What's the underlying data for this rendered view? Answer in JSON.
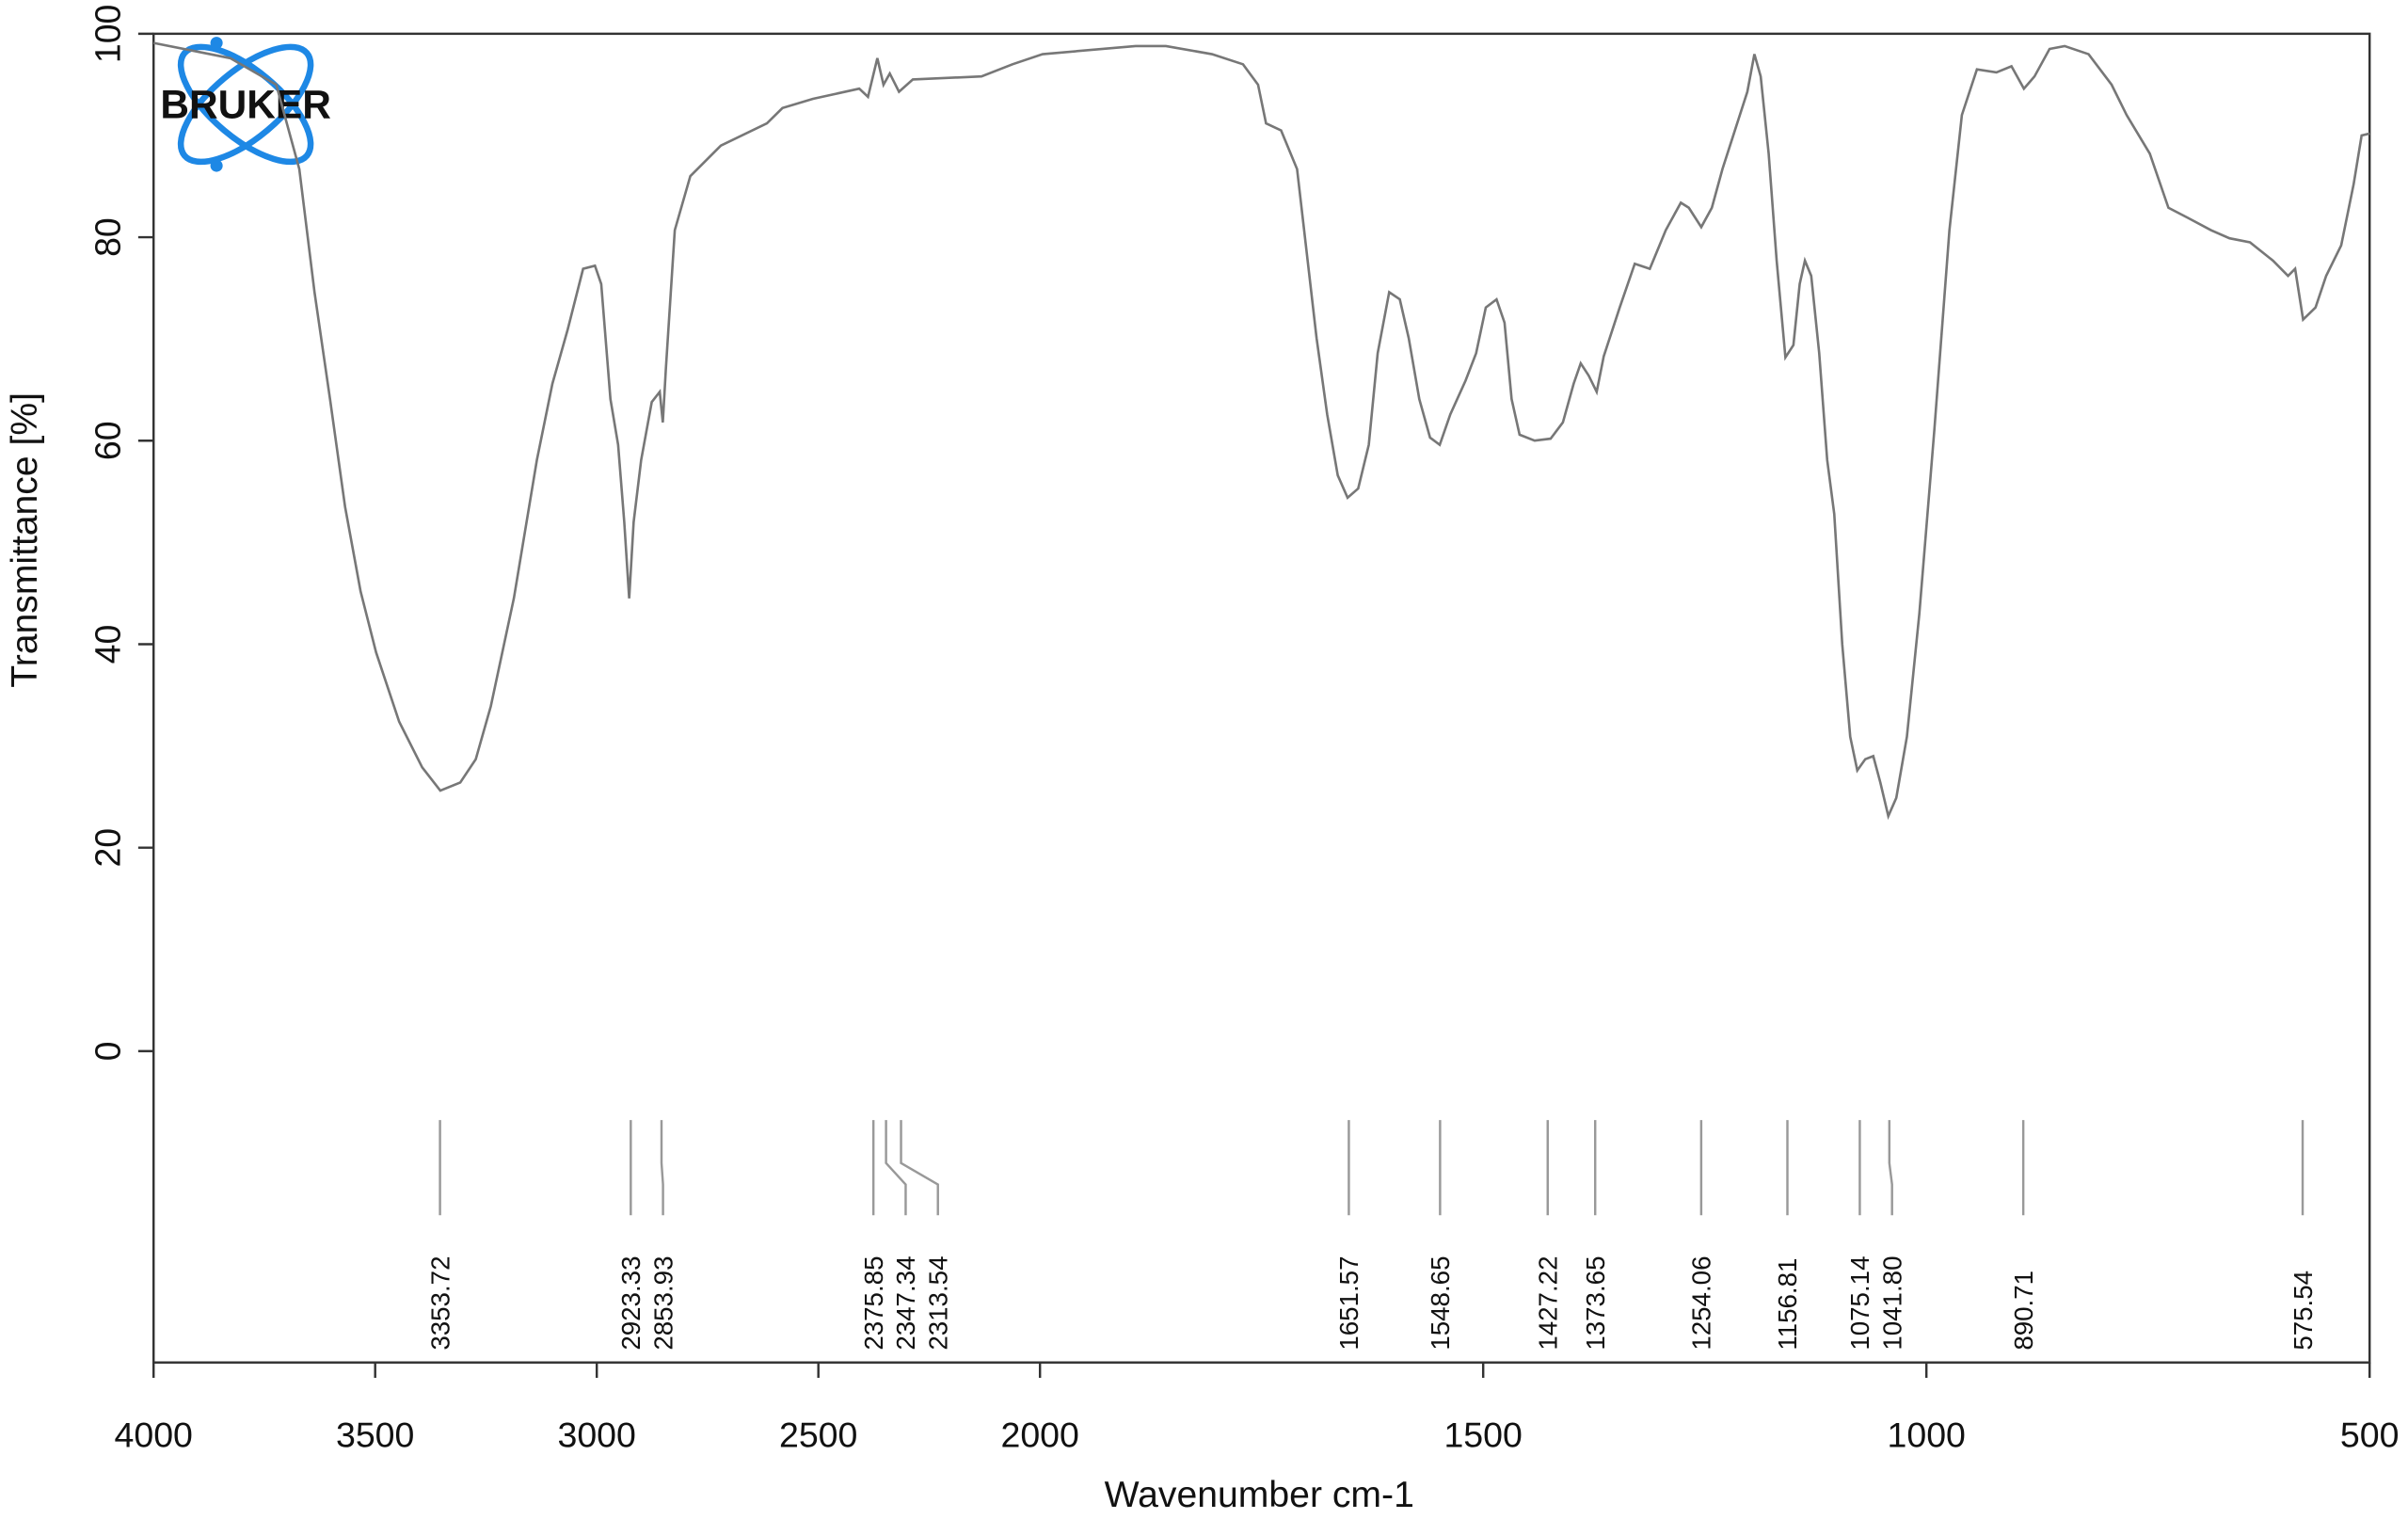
{
  "chart_data": {
    "type": "line",
    "logo": "BRUKER",
    "xlabel": "Wavenumber cm-1",
    "ylabel": "Transmittance [%]",
    "xlim": [
      4000,
      500
    ],
    "x_break": 2000,
    "x_break_zoom": 2,
    "xticks": [
      4000,
      3500,
      3000,
      2500,
      2000,
      1500,
      1000,
      500
    ],
    "ylim": [
      -30.6,
      100
    ],
    "yticks": [
      0,
      20,
      40,
      60,
      80,
      100
    ],
    "color": "#777777",
    "x": [
      4000,
      3827,
      3723,
      3671,
      3637,
      3602,
      3568,
      3533,
      3498,
      3446,
      3394,
      3353,
      3308,
      3273,
      3239,
      3187,
      3135,
      3100,
      3066,
      3031,
      3004,
      2990,
      2969,
      2952,
      2938,
      2927,
      2917,
      2900,
      2876,
      2858,
      2851,
      2844,
      2824,
      2789,
      2720,
      2616,
      2581,
      2512,
      2408,
      2388,
      2367,
      2353,
      2339,
      2318,
      2287,
      2132,
      2062,
      1997,
      1892,
      1858,
      1806,
      1771,
      1754,
      1745,
      1728,
      1710,
      1702,
      1688,
      1676,
      1664,
      1653,
      1641,
      1629,
      1619,
      1606,
      1594,
      1584,
      1572,
      1560,
      1549,
      1537,
      1520,
      1508,
      1497,
      1485,
      1476,
      1468,
      1459,
      1442,
      1424,
      1410,
      1398,
      1390,
      1381,
      1372,
      1364,
      1346,
      1329,
      1312,
      1294,
      1277,
      1268,
      1254,
      1242,
      1230,
      1216,
      1202,
      1194,
      1187,
      1178,
      1169,
      1159,
      1150,
      1143,
      1137,
      1130,
      1121,
      1112,
      1104,
      1095,
      1086,
      1078,
      1069,
      1060,
      1052,
      1043,
      1034,
      1022,
      1008,
      991,
      974,
      960,
      943,
      921,
      904,
      890,
      878,
      861,
      844,
      817,
      791,
      774,
      748,
      727,
      705,
      679,
      658,
      635,
      609,
      592,
      584,
      575,
      561,
      549,
      532,
      518,
      509,
      500
    ],
    "values": [
      99.1,
      97.6,
      95.0,
      86.7,
      74.6,
      64.1,
      53.5,
      45.2,
      39.2,
      32.4,
      27.9,
      25.6,
      26.4,
      28.7,
      33.9,
      44.5,
      58.1,
      65.6,
      70.9,
      76.9,
      77.2,
      75.4,
      64.1,
      59.6,
      52.0,
      44.5,
      52.0,
      58.1,
      63.8,
      64.8,
      61.8,
      67.1,
      80.7,
      86.0,
      89.0,
      91.2,
      92.7,
      93.6,
      94.6,
      93.8,
      97.6,
      95.0,
      96.1,
      94.3,
      95.5,
      95.8,
      97.0,
      98.0,
      98.8,
      98.8,
      98.0,
      97.0,
      95.0,
      91.2,
      90.5,
      86.7,
      80.7,
      70.1,
      62.6,
      56.6,
      54.4,
      55.3,
      59.6,
      68.6,
      74.6,
      73.9,
      70.1,
      64.1,
      60.3,
      59.6,
      62.6,
      65.9,
      68.6,
      73.1,
      73.9,
      71.6,
      64.1,
      60.6,
      60.0,
      60.2,
      61.8,
      65.6,
      67.6,
      66.4,
      64.8,
      68.3,
      73.1,
      77.4,
      76.9,
      80.7,
      83.4,
      82.9,
      81.0,
      82.9,
      86.7,
      90.5,
      94.3,
      98.0,
      95.8,
      88.2,
      77.7,
      68.2,
      69.4,
      75.4,
      77.7,
      76.2,
      68.6,
      58.1,
      52.8,
      40.0,
      30.9,
      27.6,
      28.7,
      29.0,
      26.4,
      23.1,
      24.9,
      30.9,
      43.0,
      61.1,
      80.7,
      92.0,
      96.5,
      96.2,
      96.8,
      94.6,
      95.8,
      98.5,
      98.8,
      98.0,
      95.0,
      92.0,
      88.2,
      82.9,
      81.9,
      80.7,
      79.9,
      79.5,
      77.7,
      76.2,
      76.9,
      71.9,
      73.1,
      76.2,
      79.2,
      85.2,
      90.0,
      90.2
    ],
    "peaks": [
      3353.72,
      2923.33,
      2853.93,
      2375.85,
      2347.34,
      2313.54,
      1651.57,
      1548.65,
      1427.22,
      1373.65,
      1254.06,
      1156.81,
      1075.14,
      {
        "value": 1041.8,
        "label": "1041.80"
      },
      890.71,
      575.54
    ]
  }
}
